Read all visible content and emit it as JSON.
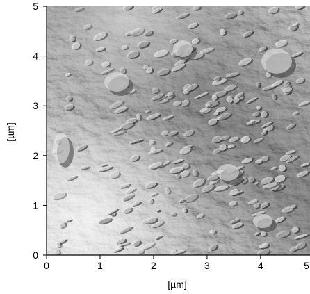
{
  "image": {
    "kind": "AFM amplitude/deflection surface image",
    "colormap": "grayscale",
    "tone_colors": {
      "light": "#e6e6e6",
      "mid": "#9c9c9c",
      "dark": "#3d3d3d",
      "shadow": "#1c1c1c"
    }
  },
  "axes": {
    "x": {
      "label": "[µm]",
      "range": [
        0,
        5
      ],
      "ticks": [
        "0",
        "1",
        "2",
        "3",
        "4",
        "5"
      ]
    },
    "y": {
      "label": "[µm]",
      "range": [
        0,
        5
      ],
      "ticks": [
        "0",
        "1",
        "2",
        "3",
        "4",
        "5"
      ]
    }
  }
}
